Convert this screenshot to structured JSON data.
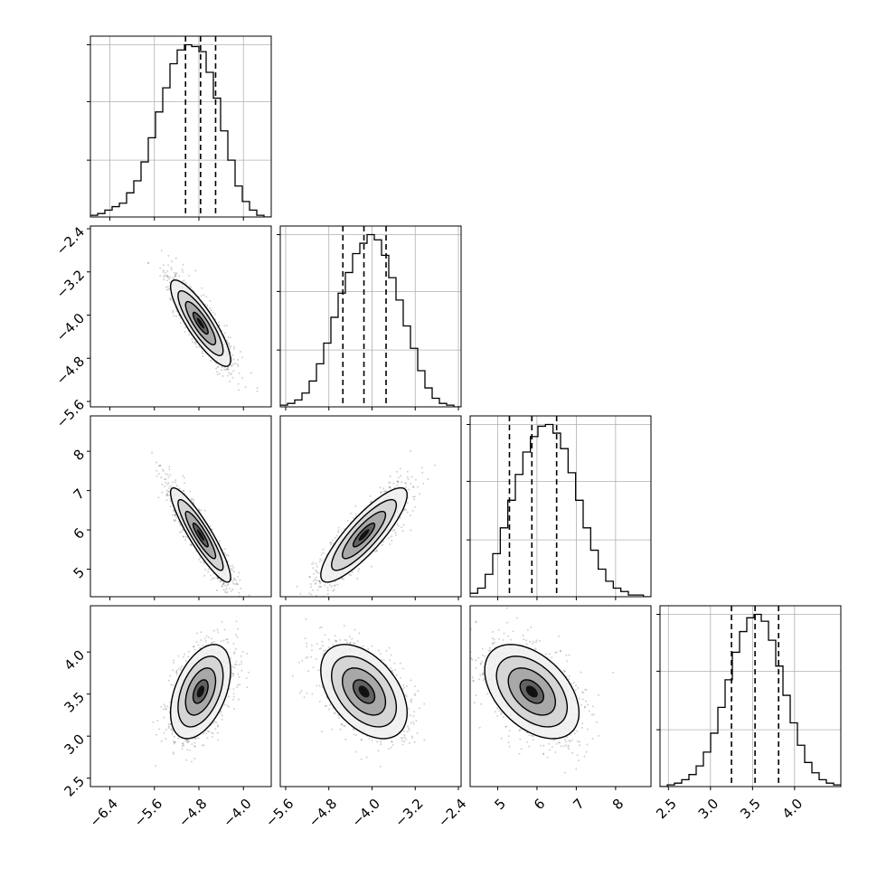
{
  "chart_data": {
    "type": "corner",
    "grid": true,
    "params": [
      {
        "range": [
          -6.75,
          -3.5
        ],
        "ticks": [
          -6.4,
          -5.6,
          -4.8,
          -4.0
        ],
        "tick_labels": [
          "−6.4",
          "−5.6",
          "−4.8",
          "−4.0"
        ],
        "quantiles": [
          -5.04,
          -4.77,
          -4.5
        ],
        "hist": [
          0.01,
          0.02,
          0.04,
          0.06,
          0.08,
          0.14,
          0.21,
          0.32,
          0.46,
          0.61,
          0.75,
          0.89,
          0.97,
          1.0,
          0.99,
          0.96,
          0.84,
          0.69,
          0.5,
          0.33,
          0.18,
          0.09,
          0.04,
          0.01,
          0.0
        ]
      },
      {
        "range": [
          -5.7,
          -2.35
        ],
        "ticks": [
          -5.6,
          -4.8,
          -4.0,
          -3.2,
          -2.4
        ],
        "tick_labels": [
          "−5.6",
          "−4.8",
          "−4.0",
          "−3.2",
          "−2.4"
        ],
        "quantiles": [
          -4.54,
          -4.15,
          -3.74
        ],
        "hist": [
          0.01,
          0.02,
          0.04,
          0.08,
          0.15,
          0.25,
          0.37,
          0.52,
          0.66,
          0.78,
          0.89,
          0.95,
          1.0,
          0.97,
          0.88,
          0.75,
          0.62,
          0.47,
          0.34,
          0.21,
          0.11,
          0.05,
          0.02,
          0.01,
          0.0
        ]
      },
      {
        "range": [
          4.3,
          8.9
        ],
        "ticks": [
          5,
          6,
          7,
          8
        ],
        "tick_labels": [
          "5",
          "6",
          "7",
          "8"
        ],
        "quantiles": [
          5.3,
          5.87,
          6.5
        ],
        "hist": [
          0.02,
          0.05,
          0.13,
          0.25,
          0.4,
          0.56,
          0.71,
          0.84,
          0.93,
          0.99,
          1.0,
          0.95,
          0.86,
          0.72,
          0.56,
          0.4,
          0.27,
          0.16,
          0.09,
          0.05,
          0.03,
          0.01,
          0.01,
          0.0
        ]
      },
      {
        "range": [
          2.4,
          4.55
        ],
        "ticks": [
          2.5,
          3.0,
          3.5,
          4.0
        ],
        "tick_labels": [
          "2.5",
          "3.0",
          "3.5",
          "4.0"
        ],
        "quantiles": [
          3.25,
          3.53,
          3.81
        ],
        "hist": [
          0.0,
          0.01,
          0.02,
          0.04,
          0.07,
          0.12,
          0.2,
          0.31,
          0.46,
          0.62,
          0.78,
          0.9,
          0.98,
          1.0,
          0.96,
          0.85,
          0.7,
          0.53,
          0.37,
          0.24,
          0.14,
          0.08,
          0.04,
          0.02,
          0.01
        ]
      }
    ],
    "covariance": {
      "means": [
        -4.77,
        -4.15,
        5.87,
        3.53
      ],
      "sigmas": [
        0.27,
        0.4,
        0.6,
        0.28
      ],
      "correlations": [
        [
          1.0,
          -0.85,
          -0.9,
          0.45
        ],
        [
          -0.85,
          1.0,
          0.85,
          -0.45
        ],
        [
          -0.9,
          0.85,
          1.0,
          -0.45
        ],
        [
          0.45,
          -0.45,
          -0.45,
          1.0
        ]
      ]
    },
    "contour_levels_sigma": [
      0.5,
      1.0,
      1.5,
      2.0
    ]
  }
}
